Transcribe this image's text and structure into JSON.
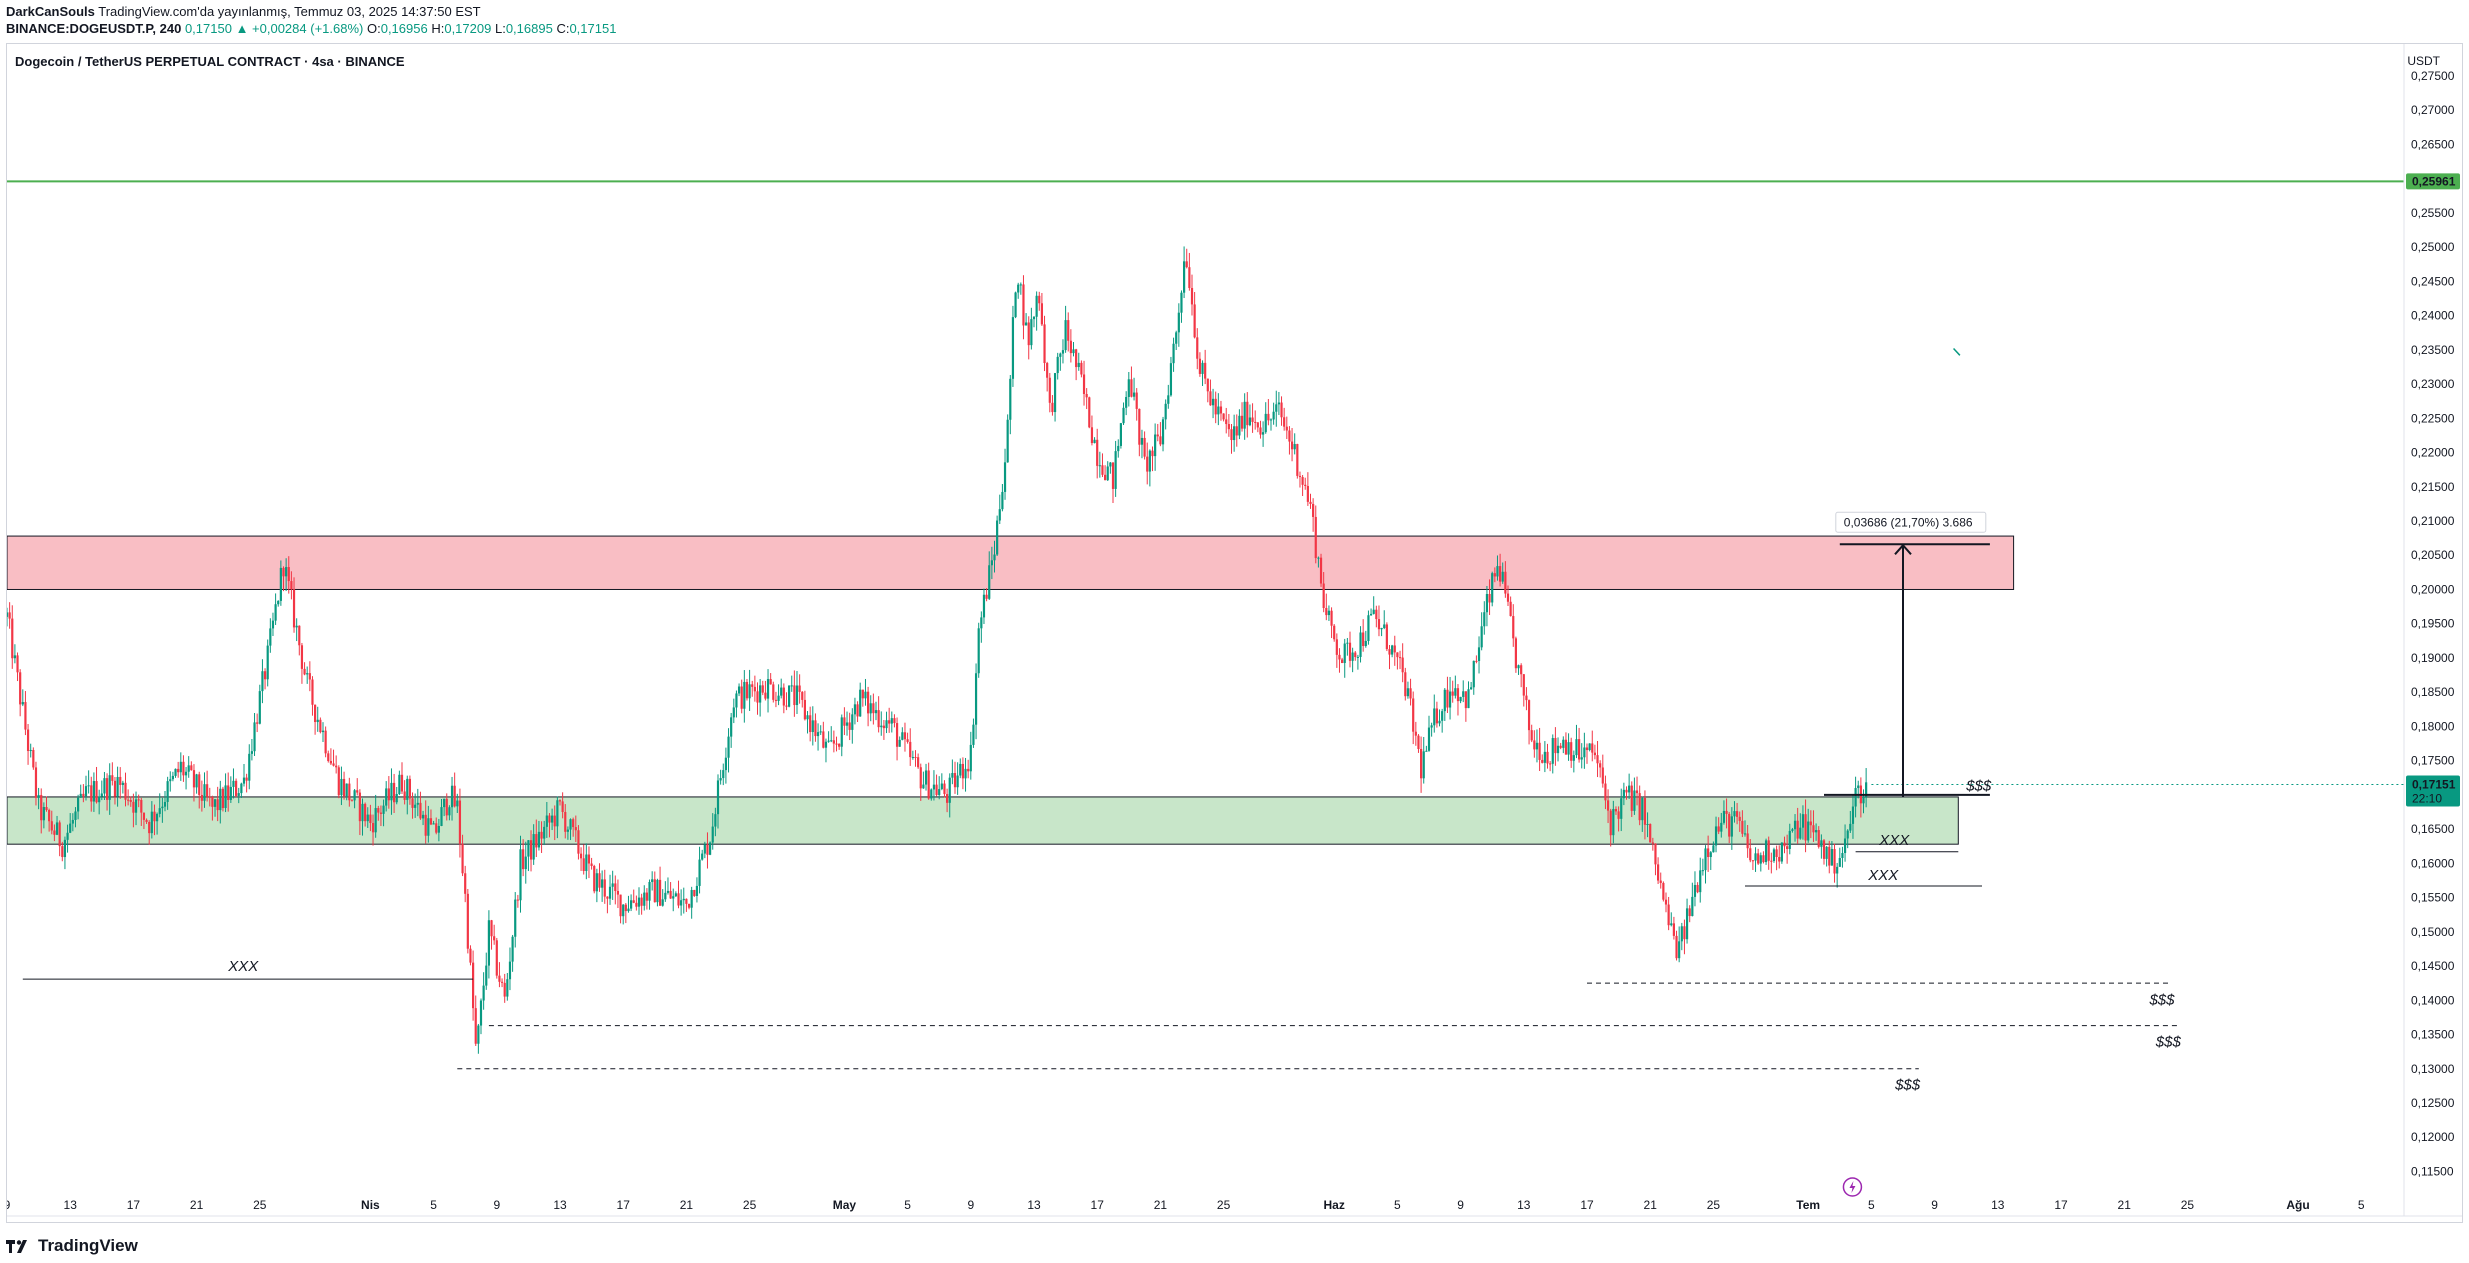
{
  "header": {
    "author": "DarkCanSouls",
    "published": "TradingView.com'da yayınlanmış, Temmuz 03, 2025 14:37:50 EST",
    "symbol": "BINANCE:DOGEUSDT.P, 240",
    "last": "0,17150",
    "change": "▲ +0,00284 (+1.68%)",
    "o_label": "O:",
    "o": "0,16956",
    "h_label": "H:",
    "h": "0,17209",
    "l_label": "L:",
    "l": "0,16895",
    "c_label": "C:",
    "c": "0,17151"
  },
  "chart_title": "Dogecoin / TetherUS PERPETUAL CONTRACT · 4sa · BINANCE",
  "currency": "USDT",
  "brand": "TradingView",
  "colors": {
    "up": "#089981",
    "down": "#f23645",
    "demand_zone": "#c8e6c9",
    "supply_zone": "#f9bec4",
    "resistance_line": "#4caf50",
    "last_price_tag": "#089981"
  },
  "chart_data": {
    "type": "candlestick",
    "y_axis": {
      "min": 0.112,
      "max": 0.2785,
      "ticks": [
        "0,27500",
        "0,27000",
        "0,26500",
        "0,26000",
        "0,25500",
        "0,25000",
        "0,24500",
        "0,24000",
        "0,23500",
        "0,23000",
        "0,22500",
        "0,22000",
        "0,21500",
        "0,21000",
        "0,20500",
        "0,20000",
        "0,19500",
        "0,19000",
        "0,18500",
        "0,18000",
        "0,17500",
        "0,17000",
        "0,16500",
        "0,16000",
        "0,15500",
        "0,15000",
        "0,14500",
        "0,14000",
        "0,13500",
        "0,13000",
        "0,12500",
        "0,12000",
        "0,11500"
      ],
      "tick_values": [
        0.275,
        0.27,
        0.265,
        0.26,
        0.255,
        0.25,
        0.245,
        0.24,
        0.235,
        0.23,
        0.225,
        0.22,
        0.215,
        0.21,
        0.205,
        0.2,
        0.195,
        0.19,
        0.185,
        0.18,
        0.175,
        0.17,
        0.165,
        0.16,
        0.155,
        0.15,
        0.145,
        0.14,
        0.135,
        0.13,
        0.125,
        0.12,
        0.115
      ]
    },
    "x_axis": {
      "ticks": [
        "9",
        "13",
        "17",
        "21",
        "25",
        "Nis",
        "5",
        "9",
        "13",
        "17",
        "21",
        "25",
        "May",
        "5",
        "9",
        "13",
        "17",
        "21",
        "25",
        "Haz",
        "5",
        "9",
        "13",
        "17",
        "21",
        "25",
        "Tem",
        "5",
        "9",
        "13",
        "17",
        "21",
        "25",
        "Ağu",
        "5"
      ],
      "tick_days": [
        0,
        4,
        8,
        12,
        16,
        23,
        27,
        31,
        35,
        39,
        43,
        47,
        53,
        57,
        61,
        65,
        69,
        73,
        77,
        84,
        88,
        92,
        96,
        100,
        104,
        108,
        114,
        118,
        122,
        126,
        130,
        134,
        138,
        145,
        149
      ]
    },
    "x_start": "2025-03-09",
    "x_end_view": "2025-08-08",
    "price_anchors": [
      [
        0,
        0.196
      ],
      [
        2,
        0.168
      ],
      [
        3.5,
        0.163
      ],
      [
        5,
        0.17
      ],
      [
        7,
        0.172
      ],
      [
        9,
        0.166
      ],
      [
        11,
        0.174
      ],
      [
        13,
        0.168
      ],
      [
        15,
        0.172
      ],
      [
        16.5,
        0.19
      ],
      [
        17.5,
        0.204
      ],
      [
        19,
        0.186
      ],
      [
        21,
        0.172
      ],
      [
        23,
        0.166
      ],
      [
        25,
        0.172
      ],
      [
        27,
        0.164
      ],
      [
        28,
        0.17
      ],
      [
        28.5,
        0.168
      ],
      [
        29,
        0.155
      ],
      [
        29.7,
        0.132
      ],
      [
        30.5,
        0.15
      ],
      [
        31.5,
        0.14
      ],
      [
        32.5,
        0.16
      ],
      [
        35,
        0.168
      ],
      [
        37,
        0.158
      ],
      [
        39,
        0.154
      ],
      [
        41,
        0.156
      ],
      [
        43,
        0.154
      ],
      [
        44.5,
        0.164
      ],
      [
        46,
        0.184
      ],
      [
        48,
        0.186
      ],
      [
        50,
        0.184
      ],
      [
        52,
        0.176
      ],
      [
        54,
        0.184
      ],
      [
        56,
        0.18
      ],
      [
        58,
        0.172
      ],
      [
        59.5,
        0.17
      ],
      [
        61,
        0.176
      ],
      [
        61.5,
        0.194
      ],
      [
        62.5,
        0.206
      ],
      [
        63.3,
        0.222
      ],
      [
        63.9,
        0.248
      ],
      [
        64.6,
        0.236
      ],
      [
        65.3,
        0.244
      ],
      [
        66,
        0.226
      ],
      [
        67,
        0.238
      ],
      [
        68,
        0.23
      ],
      [
        69,
        0.22
      ],
      [
        70,
        0.216
      ],
      [
        71,
        0.232
      ],
      [
        72,
        0.218
      ],
      [
        73,
        0.222
      ],
      [
        74,
        0.238
      ],
      [
        74.6,
        0.25
      ],
      [
        75.5,
        0.232
      ],
      [
        76.5,
        0.226
      ],
      [
        77.5,
        0.222
      ],
      [
        78.5,
        0.226
      ],
      [
        79.5,
        0.224
      ],
      [
        80.5,
        0.226
      ],
      [
        81.5,
        0.22
      ],
      [
        82.5,
        0.212
      ],
      [
        83.5,
        0.196
      ],
      [
        84.5,
        0.19
      ],
      [
        85.5,
        0.192
      ],
      [
        86.5,
        0.196
      ],
      [
        87.5,
        0.192
      ],
      [
        88.5,
        0.186
      ],
      [
        89.5,
        0.174
      ],
      [
        90.5,
        0.182
      ],
      [
        91.5,
        0.186
      ],
      [
        92.5,
        0.184
      ],
      [
        93.5,
        0.196
      ],
      [
        94.4,
        0.204
      ],
      [
        95.5,
        0.19
      ],
      [
        96.5,
        0.178
      ],
      [
        97.5,
        0.176
      ],
      [
        98.5,
        0.178
      ],
      [
        99.5,
        0.176
      ],
      [
        100.5,
        0.176
      ],
      [
        101.5,
        0.166
      ],
      [
        102.5,
        0.17
      ],
      [
        103.5,
        0.168
      ],
      [
        104.5,
        0.158
      ],
      [
        105.3,
        0.15
      ],
      [
        105.8,
        0.147
      ],
      [
        106.8,
        0.156
      ],
      [
        107.5,
        0.162
      ],
      [
        108.5,
        0.166
      ],
      [
        109.5,
        0.166
      ],
      [
        110.5,
        0.16
      ],
      [
        111.5,
        0.162
      ],
      [
        112.5,
        0.162
      ],
      [
        113.5,
        0.166
      ],
      [
        114.5,
        0.164
      ],
      [
        115.5,
        0.16
      ],
      [
        116.3,
        0.162
      ],
      [
        117,
        0.17
      ],
      [
        117.8,
        0.1715
      ]
    ],
    "annotations": {
      "supply_zone": {
        "y0": 0.2,
        "y1": 0.2078,
        "x0": 0,
        "x1": 127
      },
      "demand_zone": {
        "y0": 0.1628,
        "y1": 0.1697,
        "x0": 0,
        "x1": 123.5
      },
      "resistance_line": {
        "y": 0.25961,
        "label": "0,25961"
      },
      "measure": {
        "x": 120,
        "y_from": 0.1697,
        "y_to": 0.2066,
        "x0": 116,
        "x1": 125.5,
        "label": "0,03686 (21,70%) 3.686"
      },
      "last_price": {
        "y": 0.17151,
        "label": "0,17151",
        "countdown": "22:10"
      },
      "lows": [
        {
          "y": 0.1431,
          "x0": 1,
          "x1": 29.5,
          "style": "solid",
          "label": "XXX",
          "label_x": 14,
          "label_y": 0.145
        },
        {
          "y": 0.1617,
          "x0": 117,
          "x1": 123.5,
          "style": "solid",
          "label": "XXX",
          "label_x": 118.5,
          "label_y": 0.1634
        },
        {
          "y": 0.1567,
          "x0": 110,
          "x1": 125,
          "style": "solid",
          "label": "XXX",
          "label_x": 117.8,
          "label_y": 0.1583
        }
      ],
      "liquidity": [
        {
          "y": 0.17,
          "x0": 115,
          "x1": 125.5,
          "style": "solid",
          "label": "$$$",
          "label_x": 124,
          "label_y": 0.1714
        },
        {
          "y": 0.1425,
          "x0": 100,
          "x1": 137,
          "style": "dashed",
          "label": "$$$",
          "label_x": 135.6,
          "label_y": 0.1401
        },
        {
          "y": 0.1363,
          "x0": 30.5,
          "x1": 137.5,
          "style": "dashed",
          "label": "$$$",
          "label_x": 136,
          "label_y": 0.134
        },
        {
          "y": 0.13,
          "x0": 28.5,
          "x1": 121,
          "style": "dashed",
          "label": "$$$",
          "label_x": 119.5,
          "label_y": 0.1277
        }
      ]
    }
  }
}
